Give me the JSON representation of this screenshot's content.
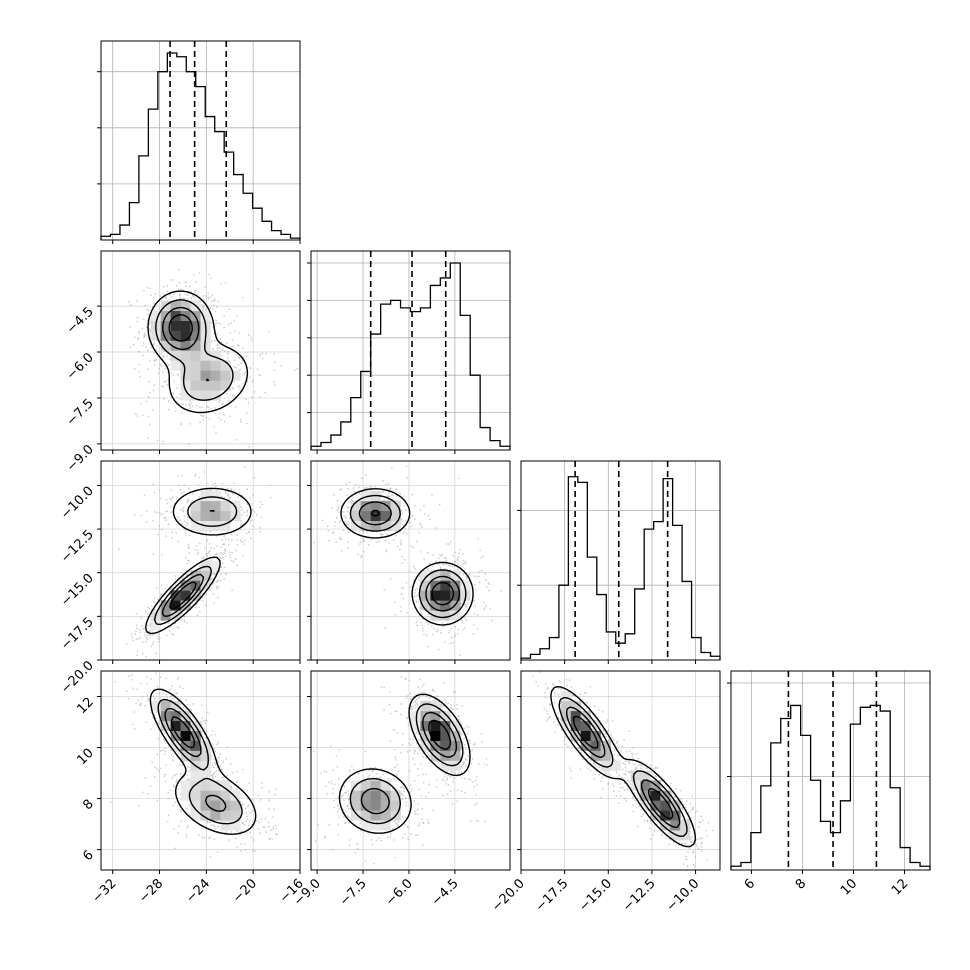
{
  "chart_data": {
    "type": "corner",
    "grid": true,
    "parameters": [
      {
        "range": [
          -33,
          -16
        ],
        "ticks": [
          -32,
          -28,
          -24,
          -20,
          -16
        ],
        "tick_labels": [
          "−32",
          "−28",
          "−24",
          "−20",
          "−16"
        ],
        "quantiles": [
          -27.1,
          -25.0,
          -22.3
        ],
        "hist": [
          0.02,
          0.03,
          0.08,
          0.2,
          0.45,
          0.7,
          0.9,
          1.0,
          0.98,
          0.9,
          0.82,
          0.66,
          0.58,
          0.47,
          0.35,
          0.25,
          0.17,
          0.1,
          0.05,
          0.03,
          0.01
        ],
        "hist_yticks": [
          0.3,
          0.6,
          0.9
        ]
      },
      {
        "range": [
          -9.2,
          -2.7
        ],
        "ticks": [
          -9.0,
          -7.5,
          -6.0,
          -4.5
        ],
        "tick_labels": [
          "−9.0",
          "−7.5",
          "−6.0",
          "−4.5"
        ],
        "quantiles": [
          -7.25,
          -5.9,
          -4.8
        ],
        "hist": [
          0.02,
          0.04,
          0.08,
          0.15,
          0.28,
          0.42,
          0.62,
          0.78,
          0.8,
          0.76,
          0.74,
          0.76,
          0.88,
          0.92,
          1.0,
          0.72,
          0.4,
          0.12,
          0.05,
          0.02
        ],
        "hist_yticks": [
          0.2,
          0.4,
          0.6,
          0.8,
          1.0
        ]
      },
      {
        "range": [
          -20,
          -8.6
        ],
        "ticks": [
          -20.0,
          -17.5,
          -15.0,
          -12.5,
          -10.0
        ],
        "tick_labels": [
          "−20.0",
          "−17.5",
          "−15.0",
          "−12.5",
          "−10.0"
        ],
        "quantiles": [
          -16.9,
          -14.4,
          -11.6
        ],
        "hist": [
          0.01,
          0.03,
          0.06,
          0.12,
          0.4,
          0.98,
          0.95,
          0.55,
          0.35,
          0.15,
          0.09,
          0.14,
          0.38,
          0.7,
          0.74,
          0.97,
          0.72,
          0.42,
          0.12,
          0.04,
          0.02
        ],
        "hist_yticks": [
          0.4,
          0.8
        ]
      },
      {
        "range": [
          5.2,
          13.0
        ],
        "ticks": [
          6,
          8,
          10,
          12
        ],
        "tick_labels": [
          "6",
          "8",
          "10",
          "12"
        ],
        "quantiles": [
          7.45,
          9.2,
          10.9
        ],
        "hist": [
          0.02,
          0.04,
          0.2,
          0.45,
          0.68,
          0.81,
          0.88,
          0.72,
          0.48,
          0.26,
          0.2,
          0.37,
          0.78,
          0.87,
          0.88,
          0.85,
          0.44,
          0.12,
          0.04,
          0.02
        ],
        "hist_yticks": [
          0.5,
          1.0
        ]
      }
    ],
    "pairs": [
      {
        "row": 1,
        "col": 0,
        "modes": [
          {
            "cx": -26.2,
            "cy": -5.2,
            "sx": 1.4,
            "sy": 0.6,
            "rho": 0.0,
            "w": 1.0
          },
          {
            "cx": -23.8,
            "cy": -6.9,
            "sx": 2.0,
            "sy": 0.65,
            "rho": 0.2,
            "w": 0.55
          }
        ]
      },
      {
        "row": 2,
        "col": 0,
        "modes": [
          {
            "cx": -23.5,
            "cy": -11.5,
            "sx": 2.0,
            "sy": 0.8,
            "rho": 0.0,
            "w": 0.55
          },
          {
            "cx": -26.0,
            "cy": -16.3,
            "sx": 1.6,
            "sy": 1.1,
            "rho": 0.85,
            "w": 1.0
          }
        ]
      },
      {
        "row": 2,
        "col": 1,
        "modes": [
          {
            "cx": -7.1,
            "cy": -11.6,
            "sx": 0.6,
            "sy": 0.75,
            "rho": 0.0,
            "w": 0.8
          },
          {
            "cx": -4.9,
            "cy": -16.2,
            "sx": 0.5,
            "sy": 0.9,
            "rho": 0.0,
            "w": 1.0
          }
        ]
      },
      {
        "row": 3,
        "col": 0,
        "modes": [
          {
            "cx": -26.0,
            "cy": 10.6,
            "sx": 1.4,
            "sy": 0.85,
            "rho": -0.75,
            "w": 1.0
          },
          {
            "cx": -23.2,
            "cy": 7.8,
            "sx": 2.0,
            "sy": 0.7,
            "rho": -0.4,
            "w": 0.6
          }
        ]
      },
      {
        "row": 3,
        "col": 1,
        "modes": [
          {
            "cx": -5.0,
            "cy": 10.5,
            "sx": 0.5,
            "sy": 0.8,
            "rho": -0.55,
            "w": 1.0
          },
          {
            "cx": -7.1,
            "cy": 7.9,
            "sx": 0.65,
            "sy": 0.7,
            "rho": -0.1,
            "w": 0.7
          }
        ]
      },
      {
        "row": 3,
        "col": 2,
        "modes": [
          {
            "cx": -16.3,
            "cy": 10.6,
            "sx": 1.0,
            "sy": 0.9,
            "rho": -0.8,
            "w": 1.0
          },
          {
            "cx": -12.0,
            "cy": 7.8,
            "sx": 1.0,
            "sy": 0.85,
            "rho": -0.8,
            "w": 1.0
          }
        ]
      }
    ]
  }
}
